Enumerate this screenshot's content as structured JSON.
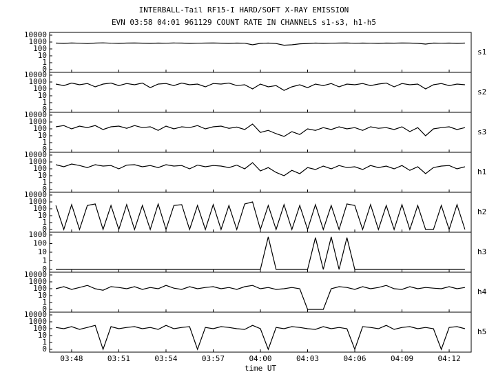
{
  "chart_data": {
    "type": "line",
    "title": "INTERBALL-Tail RF15-I HARD/SOFT X-RAY EMISSION",
    "subtitle": "EVN 03:58 04:01 961129  COUNT RATE IN CHANNELS s1-s3, h1-h5",
    "x_label": "time UT",
    "yscale": "symlog",
    "color": "#000000",
    "xlim": [
      226.6,
      253.4
    ],
    "xticks": [
      {
        "value": 228,
        "label": "03:48"
      },
      {
        "value": 231,
        "label": "03:51"
      },
      {
        "value": 234,
        "label": "03:54"
      },
      {
        "value": 237,
        "label": "03:57"
      },
      {
        "value": 240,
        "label": "04:00"
      },
      {
        "value": 243,
        "label": "04:03"
      },
      {
        "value": 246,
        "label": "04:06"
      },
      {
        "value": 249,
        "label": "04:09"
      },
      {
        "value": 252,
        "label": "04:12"
      }
    ],
    "x": [
      227,
      227.5,
      228,
      228.5,
      229,
      229.5,
      230,
      230.5,
      231,
      231.5,
      232,
      232.5,
      233,
      233.5,
      234,
      234.5,
      235,
      235.5,
      236,
      236.5,
      237,
      237.5,
      238,
      238.5,
      239,
      239.5,
      240,
      240.5,
      241,
      241.5,
      242,
      242.5,
      243,
      243.5,
      244,
      244.5,
      245,
      245.5,
      246,
      246.5,
      247,
      247.5,
      248,
      248.5,
      249,
      249.5,
      250,
      250.5,
      251,
      251.5,
      252,
      252.5,
      253
    ],
    "series": [
      {
        "name": "s1",
        "ylim": [
          0,
          10000
        ],
        "yticks": [
          0,
          1,
          10,
          100,
          1000,
          10000
        ],
        "values": [
          700,
          650,
          720,
          680,
          600,
          700,
          750,
          680,
          640,
          700,
          720,
          690,
          650,
          700,
          680,
          720,
          700,
          650,
          680,
          700,
          720,
          690,
          640,
          700,
          680,
          400,
          650,
          700,
          600,
          350,
          400,
          550,
          620,
          700,
          650,
          680,
          700,
          720,
          660,
          700,
          680,
          650,
          700,
          690,
          720,
          700,
          650,
          500,
          700,
          680,
          700,
          650,
          700
        ]
      },
      {
        "name": "s2",
        "ylim": [
          0,
          10000
        ],
        "yticks": [
          0,
          1,
          10,
          100,
          1000,
          10000
        ],
        "values": [
          500,
          300,
          700,
          400,
          600,
          200,
          500,
          700,
          300,
          600,
          400,
          700,
          150,
          500,
          600,
          300,
          700,
          400,
          500,
          200,
          600,
          500,
          700,
          300,
          400,
          100,
          500,
          200,
          300,
          60,
          200,
          400,
          150,
          500,
          300,
          600,
          200,
          500,
          400,
          600,
          300,
          500,
          700,
          200,
          600,
          400,
          500,
          100,
          400,
          600,
          300,
          500,
          400
        ]
      },
      {
        "name": "s3",
        "ylim": [
          0,
          10000
        ],
        "yticks": [
          0,
          1,
          10,
          100,
          1000,
          10000
        ],
        "values": [
          200,
          300,
          100,
          250,
          150,
          300,
          80,
          200,
          250,
          120,
          300,
          150,
          200,
          60,
          250,
          100,
          200,
          150,
          300,
          100,
          200,
          250,
          120,
          180,
          80,
          500,
          30,
          60,
          20,
          8,
          40,
          15,
          100,
          60,
          150,
          80,
          200,
          100,
          150,
          60,
          200,
          120,
          150,
          80,
          200,
          40,
          150,
          10,
          100,
          150,
          200,
          80,
          150
        ]
      },
      {
        "name": "h1",
        "ylim": [
          0,
          10000
        ],
        "yticks": [
          0,
          1,
          10,
          100,
          1000,
          10000
        ],
        "values": [
          400,
          200,
          500,
          300,
          150,
          400,
          250,
          300,
          100,
          350,
          400,
          200,
          300,
          150,
          400,
          250,
          300,
          100,
          350,
          200,
          300,
          250,
          150,
          350,
          100,
          800,
          50,
          150,
          30,
          10,
          60,
          20,
          150,
          80,
          250,
          100,
          300,
          150,
          200,
          80,
          300,
          150,
          250,
          100,
          300,
          60,
          200,
          20,
          150,
          250,
          300,
          100,
          200
        ]
      },
      {
        "name": "h2",
        "ylim": [
          0,
          10000
        ],
        "yticks": [
          0,
          1,
          10,
          100,
          1000,
          10000
        ],
        "values": [
          300,
          0,
          400,
          0,
          300,
          500,
          0,
          300,
          0,
          400,
          0,
          300,
          0,
          500,
          0,
          300,
          400,
          0,
          300,
          0,
          400,
          0,
          300,
          0,
          500,
          1000,
          0,
          300,
          0,
          400,
          0,
          300,
          0,
          400,
          0,
          300,
          0,
          500,
          300,
          0,
          400,
          0,
          300,
          0,
          400,
          0,
          300,
          0,
          0,
          300,
          0,
          400,
          0
        ]
      },
      {
        "name": "h3",
        "ylim": [
          0,
          1000
        ],
        "yticks": [
          0,
          1,
          10,
          100,
          1000
        ],
        "values": [
          0,
          0,
          0,
          0,
          0,
          0,
          0,
          0,
          0,
          0,
          0,
          0,
          0,
          0,
          0,
          0,
          0,
          0,
          0,
          0,
          0,
          0,
          0,
          0,
          0,
          0,
          0,
          600,
          0,
          0,
          0,
          0,
          0,
          500,
          0,
          600,
          0,
          500,
          0,
          0,
          0,
          0,
          0,
          0,
          0,
          0,
          0,
          0,
          0,
          0,
          0,
          0,
          0
        ]
      },
      {
        "name": "h4",
        "ylim": [
          0,
          10000
        ],
        "yticks": [
          0,
          1,
          10,
          100,
          1000,
          10000
        ],
        "values": [
          100,
          200,
          80,
          150,
          300,
          100,
          60,
          200,
          150,
          100,
          200,
          80,
          150,
          100,
          300,
          120,
          80,
          200,
          100,
          150,
          200,
          100,
          150,
          80,
          200,
          300,
          100,
          150,
          80,
          100,
          150,
          100,
          0,
          0,
          0,
          100,
          200,
          150,
          80,
          200,
          100,
          150,
          300,
          100,
          80,
          200,
          100,
          150,
          120,
          100,
          200,
          100,
          150
        ]
      },
      {
        "name": "h5",
        "ylim": [
          0,
          10000
        ],
        "yticks": [
          0,
          1,
          10,
          100,
          1000,
          10000
        ],
        "values": [
          150,
          100,
          200,
          80,
          150,
          300,
          0,
          200,
          100,
          150,
          200,
          100,
          150,
          80,
          300,
          100,
          150,
          200,
          0,
          150,
          100,
          200,
          150,
          100,
          80,
          300,
          100,
          0,
          150,
          100,
          200,
          150,
          100,
          80,
          200,
          100,
          150,
          100,
          0,
          200,
          150,
          100,
          300,
          80,
          150,
          200,
          100,
          150,
          100,
          0,
          150,
          200,
          100
        ]
      }
    ]
  }
}
